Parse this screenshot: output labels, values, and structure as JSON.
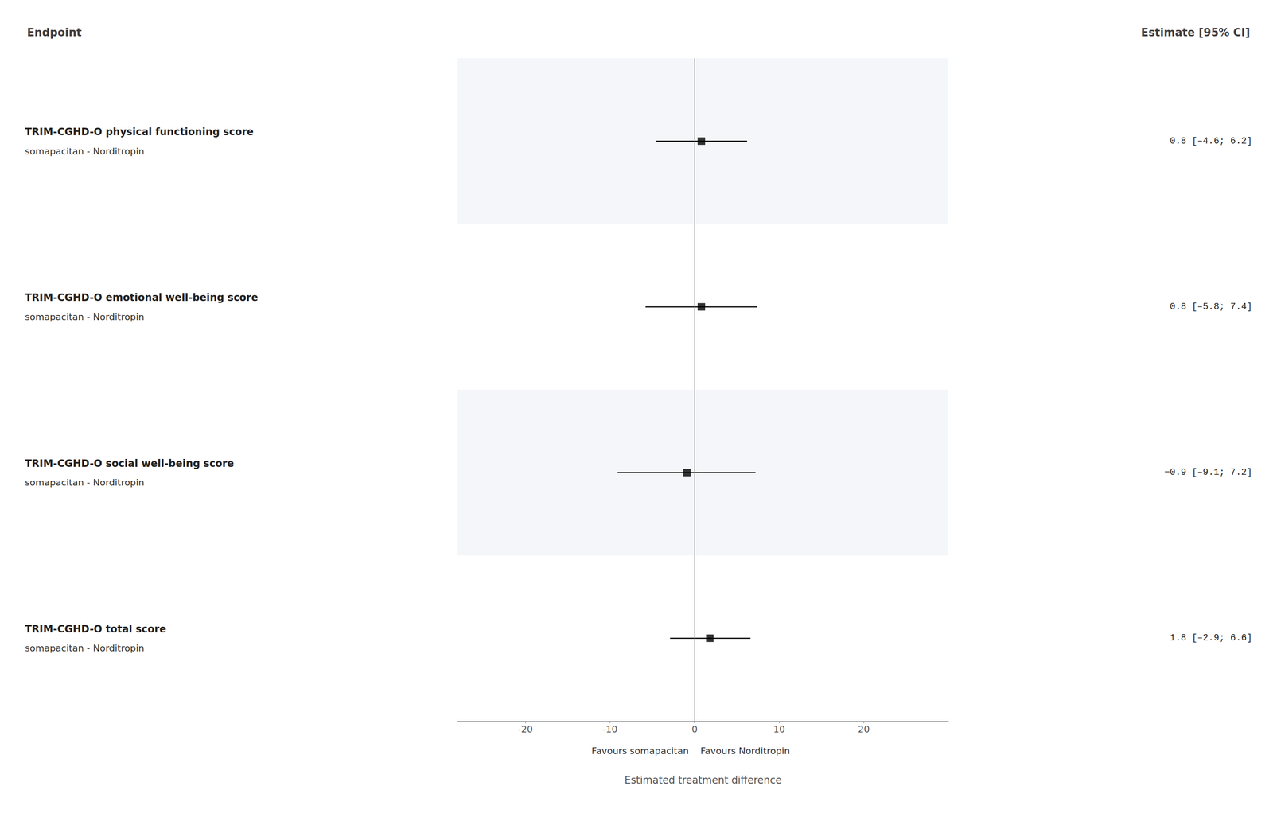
{
  "chart_data": {
    "type": "forest",
    "column_titles": [
      "Endpoint",
      "Estimate [95% CI]"
    ],
    "categories": [
      "TRIM-CGHD-O physical functioning score",
      "TRIM-CGHD-O emotional well-being score",
      "TRIM-CGHD-O social well-being score",
      "TRIM-CGHD-O total score"
    ],
    "row_labels": [
      "somapacitan - Norditropin",
      "somapacitan - Norditropin",
      "somapacitan - Norditropin",
      "somapacitan - Norditropin"
    ],
    "values": [
      0.8,
      0.8,
      -0.9,
      1.8
    ],
    "ci_low": [
      -4.6,
      -5.8,
      -9.1,
      -2.9
    ],
    "ci_high": [
      6.2,
      7.4,
      7.2,
      6.6
    ],
    "value_labels": [
      "0.8 [–4.6; 6.2]",
      "0.8 [–5.8; 7.4]",
      "−0.9 [–9.1; 7.2]",
      "1.8 [–2.9; 6.6]"
    ],
    "xlabel": "Estimated treatment difference",
    "xlim": [
      -28,
      30
    ],
    "xticks": [
      -20,
      -10,
      0,
      10,
      20
    ],
    "ref_line": 0,
    "annotations": [
      "Favours somapacitan",
      "Favours Norditropin"
    ],
    "color": "#000000",
    "marker": "square",
    "grid": false
  }
}
